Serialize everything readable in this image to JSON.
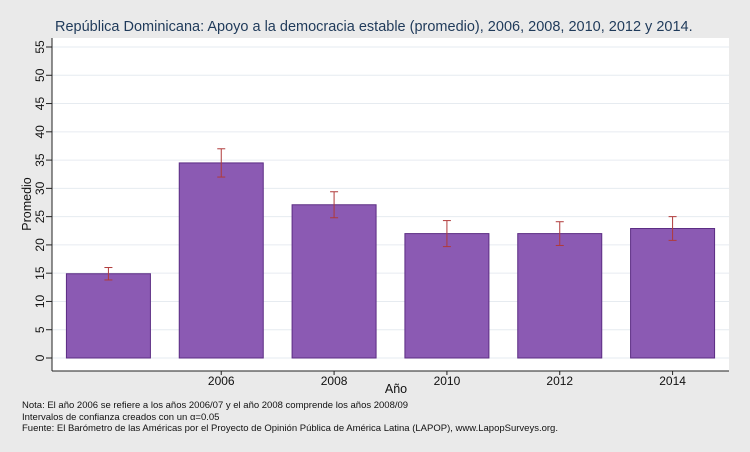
{
  "colors": {
    "background": "#eaeaea",
    "plot_background": "#ffffff",
    "bar_fill": "#8b5ab3",
    "bar_stroke": "#5b2c83",
    "error_bar": "#b03a3a",
    "title": "#1f3a5a"
  },
  "notes": [
    "Nota: El año 2006 se refiere a los años 2006/07 y el año 2008 comprende los años 2008/09",
    "Intervalos de confianza creados con un α=0.05",
    "Fuente: El Barómetro de las Américas por el Proyecto de Opinión Pública de América Latina (LAPOP), www.LapopSurveys.org."
  ],
  "chart_data": {
    "type": "bar",
    "title": "República Dominicana: Apoyo a la democracia estable (promedio), 2006, 2008, 2010, 2012 y 2014.",
    "xlabel": "Año",
    "ylabel": "Promedio",
    "categories": [
      "",
      "2006",
      "2008",
      "2010",
      "2012",
      "2014"
    ],
    "values": [
      14.9,
      34.5,
      27.1,
      22.0,
      22.0,
      22.9
    ],
    "ci_low": [
      13.8,
      32.0,
      24.8,
      19.7,
      19.9,
      20.8
    ],
    "ci_high": [
      16.0,
      37.0,
      29.4,
      24.3,
      24.1,
      25.0
    ],
    "ylim": [
      0,
      55
    ],
    "yticks": [
      0,
      5,
      10,
      15,
      20,
      25,
      30,
      35,
      40,
      45,
      50,
      55
    ],
    "grid": true,
    "legend": "none"
  }
}
